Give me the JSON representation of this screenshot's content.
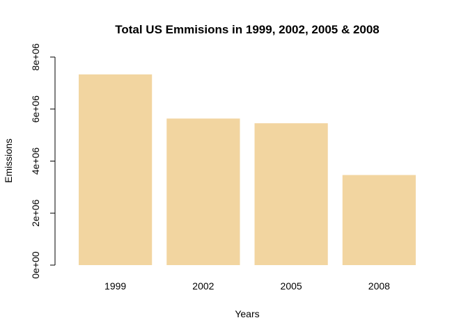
{
  "chart_data": {
    "type": "bar",
    "title": "Total US Emmisions in 1999, 2002, 2005 & 2008",
    "xlabel": "Years",
    "ylabel": "Emissions",
    "categories": [
      "1999",
      "2002",
      "2005",
      "2008"
    ],
    "values": [
      7332967,
      5635780,
      5454703,
      3464206
    ],
    "ylim": [
      0,
      8000000
    ],
    "yticks": [
      0,
      2000000,
      4000000,
      6000000,
      8000000
    ],
    "ytick_labels": [
      "0e+00",
      "2e+06",
      "4e+06",
      "6e+06",
      "8e+06"
    ],
    "bar_color": "#F2D5A0",
    "grid": false,
    "legend": "none"
  }
}
